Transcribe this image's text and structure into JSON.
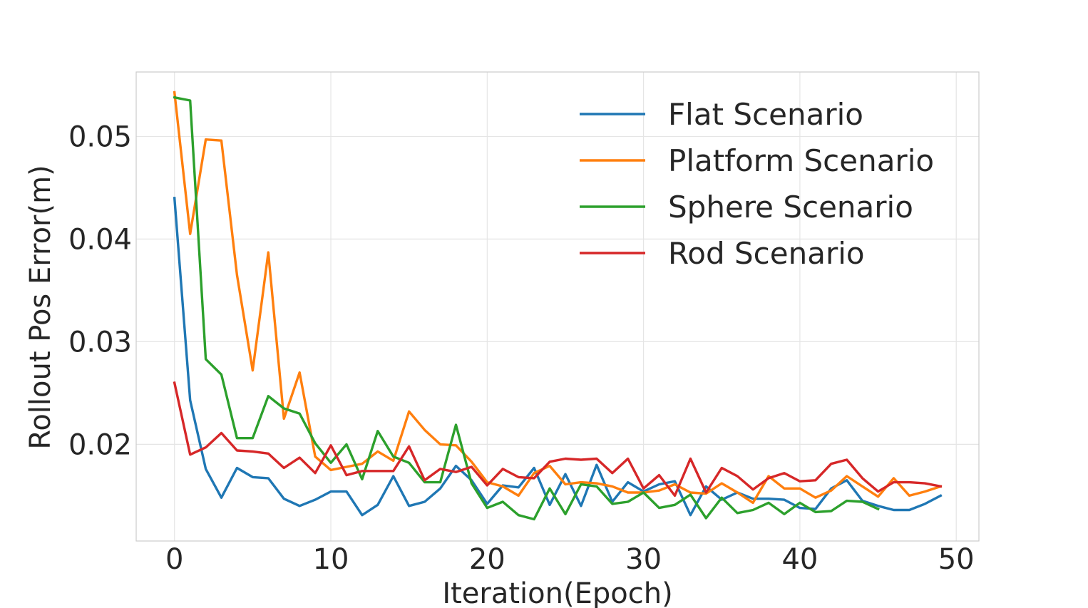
{
  "chart_data": {
    "type": "line",
    "title": "",
    "xlabel": "Iteration(Epoch)",
    "ylabel": "Rollout Pos Error(m)",
    "xlim": [
      -2.45,
      51.45
    ],
    "ylim": [
      0.01058,
      0.05628
    ],
    "xticks": [
      0,
      10,
      20,
      30,
      40,
      50
    ],
    "xtick_labels": [
      "0",
      "10",
      "20",
      "30",
      "40",
      "50"
    ],
    "yticks": [
      0.02,
      0.03,
      0.04,
      0.05
    ],
    "ytick_labels": [
      "0.02",
      "0.03",
      "0.04",
      "0.05"
    ],
    "grid": true,
    "legend_position": "upper right",
    "series": [
      {
        "name": "Flat Scenario",
        "color": "#1f77b4",
        "x": [
          0,
          1,
          2,
          3,
          4,
          5,
          6,
          7,
          8,
          9,
          10,
          11,
          12,
          13,
          14,
          15,
          16,
          17,
          18,
          19,
          20,
          21,
          22,
          23,
          24,
          25,
          26,
          27,
          28,
          29,
          30,
          31,
          32,
          33,
          34,
          35,
          36,
          37,
          38,
          39,
          40,
          41,
          42,
          43,
          44,
          45,
          46,
          47,
          48,
          49
        ],
        "values": [
          0.044,
          0.0243,
          0.0176,
          0.0148,
          0.0177,
          0.0168,
          0.0167,
          0.0147,
          0.014,
          0.0146,
          0.0154,
          0.0154,
          0.0131,
          0.0141,
          0.0169,
          0.014,
          0.0144,
          0.0157,
          0.0179,
          0.0165,
          0.0142,
          0.016,
          0.0158,
          0.0177,
          0.0141,
          0.0171,
          0.014,
          0.018,
          0.0144,
          0.0163,
          0.0154,
          0.0161,
          0.0164,
          0.0131,
          0.0159,
          0.0146,
          0.0153,
          0.0147,
          0.0147,
          0.0146,
          0.0138,
          0.0137,
          0.0157,
          0.0165,
          0.0145,
          0.014,
          0.0136,
          0.0136,
          0.0142,
          0.015
        ]
      },
      {
        "name": "Platform Scenario",
        "color": "#ff7f0e",
        "x": [
          0,
          1,
          2,
          3,
          4,
          5,
          6,
          7,
          8,
          9,
          10,
          11,
          12,
          13,
          14,
          15,
          16,
          17,
          18,
          19,
          20,
          21,
          22,
          23,
          24,
          25,
          26,
          27,
          28,
          29,
          30,
          31,
          32,
          33,
          34,
          35,
          36,
          37,
          38,
          39,
          40,
          41,
          42,
          43,
          44,
          45,
          46,
          47,
          48,
          49
        ],
        "values": [
          0.0543,
          0.0405,
          0.0497,
          0.0496,
          0.0365,
          0.0272,
          0.0387,
          0.0225,
          0.027,
          0.0188,
          0.0175,
          0.0178,
          0.0181,
          0.0193,
          0.0184,
          0.0232,
          0.0214,
          0.02,
          0.0199,
          0.0183,
          0.0163,
          0.0159,
          0.015,
          0.0172,
          0.0179,
          0.0161,
          0.0163,
          0.0162,
          0.0159,
          0.0153,
          0.0153,
          0.0155,
          0.0161,
          0.0153,
          0.0152,
          0.0162,
          0.0153,
          0.0143,
          0.0169,
          0.0157,
          0.0157,
          0.0148,
          0.0155,
          0.0169,
          0.0159,
          0.0149,
          0.0167,
          0.015,
          0.0154,
          0.0159
        ]
      },
      {
        "name": "Sphere Scenario",
        "color": "#2ca02c",
        "x": [
          0,
          1,
          2,
          3,
          4,
          5,
          6,
          7,
          8,
          9,
          10,
          11,
          12,
          13,
          14,
          15,
          16,
          17,
          18,
          19,
          20,
          21,
          22,
          23,
          24,
          25,
          26,
          27,
          28,
          29,
          30,
          31,
          32,
          33,
          34,
          35,
          36,
          37,
          38,
          39,
          40,
          41,
          42,
          43,
          44,
          45
        ],
        "values": [
          0.0538,
          0.0535,
          0.0283,
          0.0268,
          0.0206,
          0.0206,
          0.0247,
          0.0235,
          0.023,
          0.0201,
          0.0182,
          0.02,
          0.0166,
          0.0213,
          0.0188,
          0.0182,
          0.0163,
          0.0163,
          0.0219,
          0.0162,
          0.0138,
          0.0144,
          0.0131,
          0.0127,
          0.0157,
          0.0132,
          0.0161,
          0.0159,
          0.0142,
          0.0144,
          0.0153,
          0.0138,
          0.0141,
          0.0151,
          0.0128,
          0.0148,
          0.0133,
          0.0136,
          0.0143,
          0.0132,
          0.0143,
          0.0134,
          0.0135,
          0.0145,
          0.0144,
          0.0137
        ]
      },
      {
        "name": "Rod Scenario",
        "color": "#d62728",
        "x": [
          0,
          1,
          2,
          3,
          4,
          5,
          6,
          7,
          8,
          9,
          10,
          11,
          12,
          13,
          14,
          15,
          16,
          17,
          18,
          19,
          20,
          21,
          22,
          23,
          24,
          25,
          26,
          27,
          28,
          29,
          30,
          31,
          32,
          33,
          34,
          35,
          36,
          37,
          38,
          39,
          40,
          41,
          42,
          43,
          44,
          45,
          46,
          47,
          48,
          49
        ],
        "values": [
          0.026,
          0.019,
          0.0197,
          0.0211,
          0.0194,
          0.0193,
          0.0191,
          0.0177,
          0.0187,
          0.0172,
          0.0199,
          0.017,
          0.0174,
          0.0174,
          0.0174,
          0.0198,
          0.0165,
          0.0176,
          0.0173,
          0.0178,
          0.016,
          0.0176,
          0.0168,
          0.0167,
          0.0183,
          0.0186,
          0.0185,
          0.0186,
          0.0172,
          0.0186,
          0.0157,
          0.017,
          0.015,
          0.0186,
          0.0153,
          0.0177,
          0.0169,
          0.0156,
          0.0167,
          0.0172,
          0.0164,
          0.0165,
          0.0181,
          0.0185,
          0.0167,
          0.0154,
          0.0163,
          0.0163,
          0.0162,
          0.0159
        ]
      }
    ]
  }
}
